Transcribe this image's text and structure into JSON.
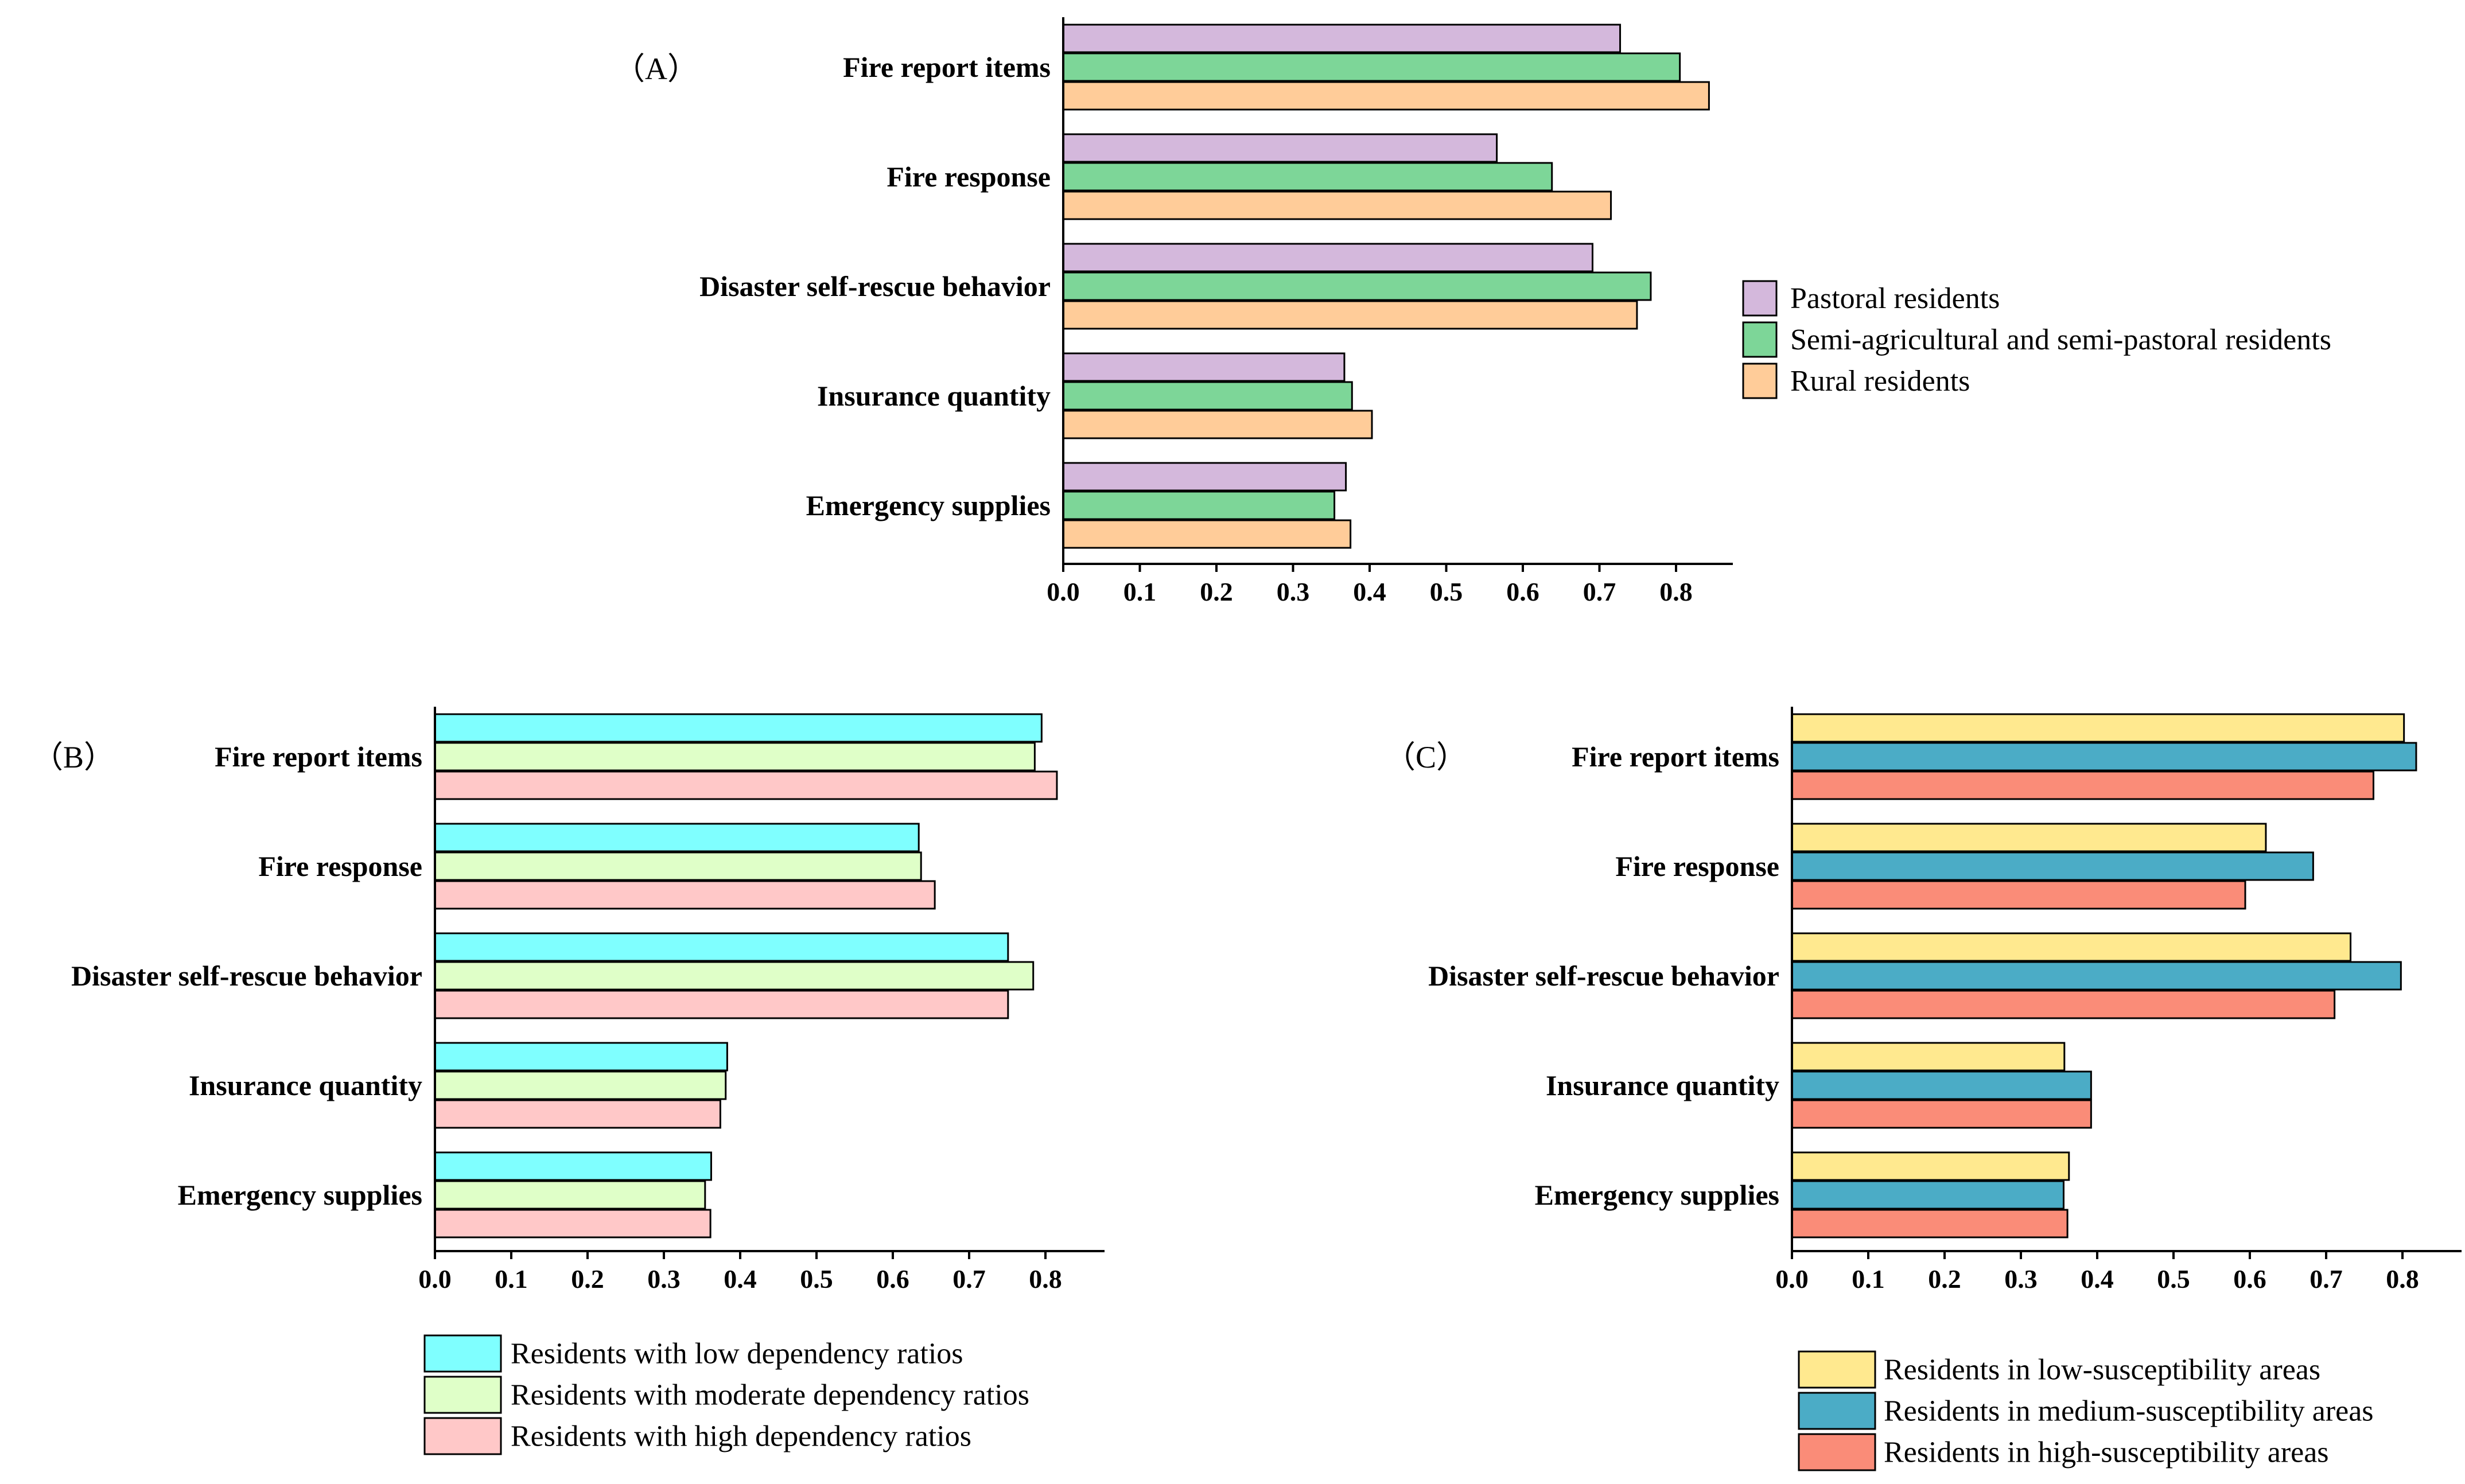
{
  "chart_data": [
    {
      "type": "bar",
      "orientation": "horizontal",
      "panel_label": "（A）",
      "categories": [
        "Fire report items",
        "Fire response",
        "Disaster self-rescue behavior",
        "Insurance quantity",
        "Emergency supplies"
      ],
      "series": [
        {
          "name": "Pastoral residents",
          "color": "#D4B8DC",
          "values": [
            0.727,
            0.566,
            0.691,
            0.367,
            0.369
          ]
        },
        {
          "name": "Semi-agricultural and semi-pastoral residents",
          "color": "#7DD698",
          "values": [
            0.805,
            0.638,
            0.767,
            0.377,
            0.354
          ]
        },
        {
          "name": "Rural residents",
          "color": "#FFCC99",
          "values": [
            0.843,
            0.715,
            0.749,
            0.403,
            0.375
          ]
        }
      ],
      "xlim": [
        0.0,
        0.88
      ],
      "xticks": [
        "0.0",
        "0.1",
        "0.2",
        "0.3",
        "0.4",
        "0.5",
        "0.6",
        "0.7",
        "0.8"
      ],
      "xlabel": "",
      "ylabel": "",
      "title": "",
      "legend_position": "right"
    },
    {
      "type": "bar",
      "orientation": "horizontal",
      "panel_label": "（B）",
      "categories": [
        "Fire report items",
        "Fire response",
        "Disaster self-rescue behavior",
        "Insurance quantity",
        "Emergency supplies"
      ],
      "series": [
        {
          "name": "Residents with low dependency ratios",
          "color": "#7FFFFF",
          "values": [
            0.795,
            0.634,
            0.751,
            0.383,
            0.362
          ]
        },
        {
          "name": "Residents with moderate dependency ratios",
          "color": "#DFFFC8",
          "values": [
            0.786,
            0.637,
            0.784,
            0.381,
            0.354
          ]
        },
        {
          "name": "Residents with high dependency ratios",
          "color": "#FFC8C8",
          "values": [
            0.815,
            0.655,
            0.751,
            0.374,
            0.361
          ]
        }
      ],
      "xlim": [
        0.0,
        0.88
      ],
      "xticks": [
        "0.0",
        "0.1",
        "0.2",
        "0.3",
        "0.4",
        "0.5",
        "0.6",
        "0.7",
        "0.8"
      ],
      "xlabel": "",
      "ylabel": "",
      "title": "",
      "legend_position": "bottom"
    },
    {
      "type": "bar",
      "orientation": "horizontal",
      "panel_label": "（C）",
      "categories": [
        "Fire report items",
        "Fire response",
        "Disaster self-rescue behavior",
        "Insurance quantity",
        "Emergency supplies"
      ],
      "series": [
        {
          "name": "Residents in low-susceptibility areas",
          "color": "#FFE98F",
          "values": [
            0.802,
            0.621,
            0.732,
            0.357,
            0.363
          ]
        },
        {
          "name": "Residents in medium-susceptibility areas",
          "color": "#4BACC6",
          "values": [
            0.818,
            0.683,
            0.798,
            0.392,
            0.356
          ]
        },
        {
          "name": "Residents in high-susceptibility areas",
          "color": "#FA8C78",
          "values": [
            0.762,
            0.594,
            0.711,
            0.392,
            0.361
          ]
        }
      ],
      "xlim": [
        0.0,
        0.88
      ],
      "xticks": [
        "0.0",
        "0.1",
        "0.2",
        "0.3",
        "0.4",
        "0.5",
        "0.6",
        "0.7",
        "0.8"
      ],
      "xlabel": "",
      "ylabel": "",
      "title": "",
      "legend_position": "bottom"
    }
  ]
}
